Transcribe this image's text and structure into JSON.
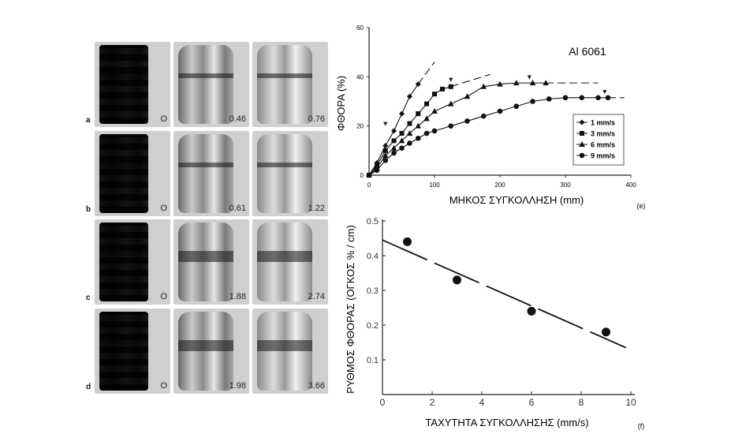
{
  "photo_grid": {
    "rows": [
      {
        "letter": "a",
        "labels": [
          "O",
          "0.46",
          "0.76"
        ]
      },
      {
        "letter": "b",
        "labels": [
          "O",
          "0.61",
          "1.22"
        ]
      },
      {
        "letter": "c",
        "labels": [
          "O",
          "1.88",
          "2.74"
        ]
      },
      {
        "letter": "d",
        "labels": [
          "O",
          "1.98",
          "3.66"
        ]
      }
    ]
  },
  "chart_data": [
    {
      "type": "line",
      "panel_label": "(e)",
      "annotation": "Al 6061",
      "xlabel": "ΜΗΚΟΣ ΣΥΓΚΟΛΛΗΣΗ (mm)",
      "ylabel": "ΦΘΟΡΑ (%)",
      "xlim": [
        0,
        400
      ],
      "ylim": [
        0,
        60
      ],
      "x_ticks": [
        "0",
        "100",
        "200",
        "300",
        "400"
      ],
      "y_ticks": [
        "0",
        "20",
        "40",
        "60"
      ],
      "legend_position": "right",
      "series": [
        {
          "name": "1 mm/s",
          "marker": "diamond",
          "x": [
            0,
            12,
            25,
            38,
            50,
            62,
            75
          ],
          "y": [
            0,
            5,
            12,
            18,
            25,
            32,
            37
          ],
          "dash_x": [
            75,
            100
          ],
          "dash_y": [
            37,
            46
          ],
          "arrow_x": 25,
          "arrow_y": 20
        },
        {
          "name": "3 mm/s",
          "marker": "square",
          "x": [
            0,
            12,
            25,
            38,
            50,
            62,
            75,
            88,
            100,
            112,
            125
          ],
          "y": [
            0,
            4,
            10,
            14,
            17,
            21,
            25,
            29,
            33,
            35,
            36
          ],
          "dash_x": [
            125,
            185
          ],
          "dash_y": [
            36,
            41
          ],
          "arrow_x": 125,
          "arrow_y": 38
        },
        {
          "name": "6 mm/s",
          "marker": "triangle",
          "x": [
            0,
            12,
            25,
            38,
            50,
            62,
            75,
            88,
            100,
            125,
            150,
            175,
            200,
            225,
            250,
            270
          ],
          "y": [
            0,
            3,
            8,
            11,
            14,
            17,
            20,
            23,
            26,
            29,
            32,
            36,
            37,
            37.5,
            37.5,
            37.5
          ],
          "dash_x": [
            270,
            350
          ],
          "dash_y": [
            37.5,
            37.5
          ],
          "arrow_x": 245,
          "arrow_y": 39
        },
        {
          "name": "9 mm/s",
          "marker": "circle",
          "x": [
            0,
            12,
            25,
            38,
            50,
            62,
            75,
            88,
            100,
            125,
            150,
            175,
            200,
            225,
            250,
            275,
            300,
            325,
            350,
            365
          ],
          "y": [
            0,
            2,
            6,
            9,
            11,
            13,
            15,
            17,
            18,
            20,
            22,
            24,
            26,
            28,
            30,
            31,
            31.5,
            31.5,
            31.5,
            31.5
          ],
          "dash_x": [
            365,
            390
          ],
          "dash_y": [
            31.5,
            31.5
          ],
          "arrow_x": 360,
          "arrow_y": 33
        }
      ]
    },
    {
      "type": "scatter",
      "panel_label": "(f)",
      "xlabel": "ΤΑΧΥΤΗΤΑ ΣΥΓΚΟΛΛΗΣΗΣ (mm/s)",
      "ylabel": "ΡΥΘΜΟΣ ΦΘΟΡΑΣ (ΟΓΚΟΣ %  /  cm)",
      "xlim": [
        0,
        10
      ],
      "ylim": [
        0,
        0.5
      ],
      "x_ticks": [
        "0",
        "2",
        "4",
        "6",
        "8",
        "10"
      ],
      "y_ticks": [
        "0.1",
        "0.2",
        "0.3",
        "0.4",
        "0.5"
      ],
      "points": {
        "x": [
          1,
          3,
          6,
          9
        ],
        "y": [
          0.44,
          0.33,
          0.24,
          0.18
        ]
      },
      "trend": {
        "x": [
          0,
          9.8
        ],
        "y": [
          0.445,
          0.135
        ]
      }
    }
  ]
}
